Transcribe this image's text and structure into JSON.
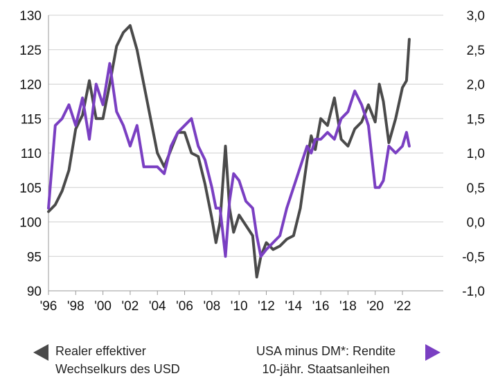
{
  "chart_data": {
    "type": "line",
    "title": "",
    "x_axis": {
      "ticks": [
        "'96",
        "'98",
        "'00",
        "'02",
        "'04",
        "'06",
        "'08",
        "'10",
        "'12",
        "'14",
        "'16",
        "'18",
        "'20",
        "'22"
      ],
      "tick_years": [
        1996,
        1998,
        2000,
        2002,
        2004,
        2006,
        2008,
        2010,
        2012,
        2014,
        2016,
        2018,
        2020,
        2022
      ],
      "range": [
        1996,
        2025
      ]
    },
    "y_left": {
      "ticks": [
        "90",
        "95",
        "100",
        "105",
        "110",
        "115",
        "120",
        "125",
        "130"
      ],
      "tick_values": [
        90,
        95,
        100,
        105,
        110,
        115,
        120,
        125,
        130
      ],
      "range": [
        90,
        130
      ]
    },
    "y_right": {
      "ticks": [
        "-1,0",
        "-0,5",
        "0,0",
        "0,5",
        "1,0",
        "1,5",
        "2,0",
        "2,5",
        "3,0"
      ],
      "tick_values": [
        -1.0,
        -0.5,
        0.0,
        0.5,
        1.0,
        1.5,
        2.0,
        2.5,
        3.0
      ],
      "range": [
        -1.0,
        3.0
      ]
    },
    "grid": "horizontal",
    "series": [
      {
        "name": "Realer effektiver Wechselkurs des USD",
        "axis": "left",
        "color": "#4a4a4a",
        "x": [
          1996.0,
          1996.5,
          1997.0,
          1997.5,
          1998.0,
          1998.5,
          1999.0,
          1999.5,
          2000.0,
          2000.5,
          2001.0,
          2001.5,
          2002.0,
          2002.5,
          2003.0,
          2003.5,
          2004.0,
          2004.5,
          2005.0,
          2005.5,
          2006.0,
          2006.5,
          2007.0,
          2007.5,
          2008.0,
          2008.3,
          2008.6,
          2009.0,
          2009.3,
          2009.6,
          2010.0,
          2010.5,
          2011.0,
          2011.3,
          2011.6,
          2012.0,
          2012.5,
          2013.0,
          2013.5,
          2014.0,
          2014.5,
          2015.0,
          2015.3,
          2015.6,
          2016.0,
          2016.5,
          2017.0,
          2017.5,
          2018.0,
          2018.5,
          2019.0,
          2019.5,
          2020.0,
          2020.3,
          2020.6,
          2021.0,
          2021.5,
          2022.0,
          2022.3,
          2022.5
        ],
        "values": [
          101.5,
          102.5,
          104.5,
          107.5,
          113.5,
          115.5,
          120.5,
          115.0,
          115.0,
          120.0,
          125.5,
          127.5,
          128.5,
          125.0,
          120.0,
          115.0,
          110.0,
          108.0,
          110.5,
          113.0,
          113.0,
          110.0,
          109.5,
          105.5,
          100.5,
          97.0,
          100.0,
          111.0,
          102.0,
          98.5,
          101.0,
          99.5,
          98.0,
          92.0,
          95.0,
          97.0,
          96.0,
          96.5,
          97.5,
          98.0,
          102.0,
          109.0,
          112.5,
          110.5,
          115.0,
          114.0,
          118.0,
          112.0,
          111.0,
          113.5,
          114.5,
          117.0,
          114.5,
          120.0,
          117.5,
          111.5,
          115.0,
          119.5,
          120.5,
          126.5
        ]
      },
      {
        "name": "USA minus DM*: Rendite 10-jähr. Staatsanleihen",
        "axis": "right",
        "color": "#7a3fc2",
        "x": [
          1996.0,
          1996.5,
          1997.0,
          1997.5,
          1998.0,
          1998.5,
          1999.0,
          1999.5,
          2000.0,
          2000.5,
          2001.0,
          2001.5,
          2002.0,
          2002.5,
          2003.0,
          2003.5,
          2004.0,
          2004.5,
          2005.0,
          2005.5,
          2006.0,
          2006.5,
          2007.0,
          2007.5,
          2008.0,
          2008.3,
          2008.6,
          2009.0,
          2009.3,
          2009.6,
          2010.0,
          2010.5,
          2011.0,
          2011.3,
          2011.6,
          2012.0,
          2012.5,
          2013.0,
          2013.5,
          2014.0,
          2014.5,
          2015.0,
          2015.3,
          2015.6,
          2016.0,
          2016.5,
          2017.0,
          2017.5,
          2018.0,
          2018.5,
          2019.0,
          2019.5,
          2020.0,
          2020.3,
          2020.6,
          2021.0,
          2021.5,
          2022.0,
          2022.3,
          2022.5
        ],
        "values": [
          0.2,
          1.4,
          1.5,
          1.7,
          1.4,
          1.8,
          1.2,
          2.0,
          1.7,
          2.3,
          1.6,
          1.4,
          1.1,
          1.4,
          0.8,
          0.8,
          0.8,
          0.7,
          1.1,
          1.3,
          1.4,
          1.5,
          1.1,
          0.9,
          0.5,
          0.2,
          0.2,
          -0.5,
          0.3,
          0.7,
          0.6,
          0.3,
          0.2,
          -0.2,
          -0.5,
          -0.4,
          -0.3,
          -0.2,
          0.2,
          0.5,
          0.8,
          1.1,
          1.0,
          1.2,
          1.2,
          1.3,
          1.2,
          1.5,
          1.6,
          1.9,
          1.7,
          1.4,
          0.5,
          0.5,
          0.6,
          1.1,
          1.0,
          1.1,
          1.3,
          1.1
        ]
      }
    ],
    "legend": {
      "left": {
        "line1": "Realer effektiver",
        "line2": "Wechselkurs des USD"
      },
      "right": {
        "line1": "USA minus DM*: Rendite",
        "line2": "10-jähr. Staatsanleihen"
      }
    }
  }
}
